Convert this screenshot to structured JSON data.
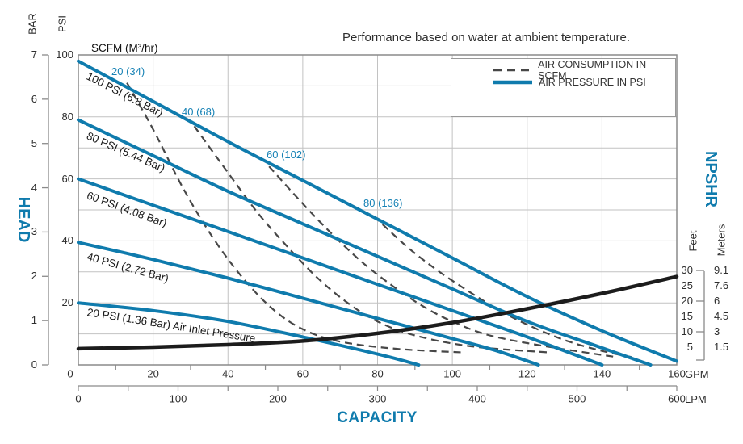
{
  "title": "Performance based on water at ambient temperature.",
  "scfm_header": "SCFM (M³/hr)",
  "legend": {
    "air_consumption": "AIR CONSUMPTION IN SCFM",
    "air_pressure": "AIR PRESSURE IN PSI"
  },
  "axis_labels": {
    "head": "HEAD",
    "capacity": "CAPACITY",
    "npshr": "NPSHR",
    "bar": "BAR",
    "psi": "PSI",
    "feet": "Feet",
    "meters": "Meters",
    "gpm_unit": "GPM",
    "lpm_unit": "LPM"
  },
  "ticks": {
    "bar": [
      7,
      6,
      5,
      4,
      3,
      2,
      1,
      0
    ],
    "psi": [
      100,
      80,
      60,
      40,
      20
    ],
    "gpm": [
      0,
      20,
      40,
      60,
      80,
      100,
      120,
      140,
      160
    ],
    "lpm": [
      0,
      100,
      200,
      300,
      400,
      500,
      600
    ],
    "feet": [
      30,
      25,
      20,
      15,
      10,
      5
    ],
    "meters": [
      "9.1",
      "7.6",
      "6",
      "4.5",
      "3",
      "1.5"
    ]
  },
  "colors": {
    "accent": "#0f7bad",
    "dash": "#474747",
    "black_curve": "#1c1c1c",
    "grid": "#c2c2c2",
    "frame": "#8a8a8a",
    "text": "#2e2e2e"
  },
  "chart_data": {
    "type": "line",
    "title": "Performance based on water at ambient temperature.",
    "x_axis": {
      "label": "CAPACITY",
      "units": [
        "GPM",
        "LPM"
      ],
      "gpm_range": [
        0,
        160
      ],
      "lpm_range": [
        0,
        600
      ]
    },
    "y_axis_left": {
      "label": "HEAD",
      "units": [
        "BAR",
        "PSI"
      ],
      "bar_range": [
        0,
        7
      ],
      "psi_range": [
        0,
        100
      ]
    },
    "y_axis_right": {
      "label": "NPSHR",
      "units": [
        "Feet",
        "Meters"
      ],
      "feet_ticks": [
        30,
        25,
        20,
        15,
        10,
        5
      ],
      "meters_ticks": [
        9.1,
        7.6,
        6,
        4.5,
        3,
        1.5
      ]
    },
    "grid": true,
    "legend_position": "top-right",
    "air_pressure_curves": [
      {
        "label": "100 PSI (6.8 Bar)",
        "points_gpm_psi": [
          [
            0,
            98
          ],
          [
            20,
            85
          ],
          [
            40,
            72
          ],
          [
            60,
            59.5
          ],
          [
            80,
            47
          ],
          [
            100,
            34.5
          ],
          [
            120,
            22
          ],
          [
            140,
            11
          ],
          [
            160,
            1.2
          ]
        ]
      },
      {
        "label": "80 PSI (5.44 Bar)",
        "points_gpm_psi": [
          [
            0,
            79
          ],
          [
            20,
            67.5
          ],
          [
            40,
            56
          ],
          [
            60,
            45.5
          ],
          [
            80,
            35
          ],
          [
            100,
            24.5
          ],
          [
            120,
            14
          ],
          [
            140,
            5.5
          ],
          [
            153,
            0
          ]
        ]
      },
      {
        "label": "60 PSI (4.08 Bar)",
        "points_gpm_psi": [
          [
            0,
            60
          ],
          [
            20,
            51.5
          ],
          [
            40,
            43
          ],
          [
            60,
            34.5
          ],
          [
            80,
            26
          ],
          [
            100,
            17.5
          ],
          [
            120,
            9
          ],
          [
            140,
            0
          ]
        ]
      },
      {
        "label": "40 PSI (2.72 Bar)",
        "points_gpm_psi": [
          [
            0,
            39.5
          ],
          [
            20,
            34
          ],
          [
            40,
            28
          ],
          [
            60,
            21.5
          ],
          [
            80,
            15
          ],
          [
            100,
            8.5
          ],
          [
            112,
            4.5
          ],
          [
            123,
            0
          ]
        ]
      },
      {
        "label": "20 PSI (1.36 Bar) Air Inlet Pressure",
        "points_gpm_psi": [
          [
            0,
            20
          ],
          [
            20,
            17.5
          ],
          [
            40,
            14
          ],
          [
            60,
            9
          ],
          [
            80,
            3.5
          ],
          [
            91,
            0
          ]
        ]
      }
    ],
    "air_consumption_curves": [
      {
        "label": "20 (34)",
        "points_gpm_psi": [
          [
            13,
            91
          ],
          [
            20,
            76
          ],
          [
            28,
            57
          ],
          [
            36,
            41
          ],
          [
            44,
            28
          ],
          [
            52,
            18
          ],
          [
            60,
            11.5
          ],
          [
            70,
            7.5
          ],
          [
            85,
            5.2
          ],
          [
            103,
            4
          ]
        ]
      },
      {
        "label": "40 (68)",
        "points_gpm_psi": [
          [
            31,
            77
          ],
          [
            40,
            62
          ],
          [
            48,
            49
          ],
          [
            56,
            38
          ],
          [
            64,
            28
          ],
          [
            72,
            20
          ],
          [
            80,
            14
          ],
          [
            90,
            9.5
          ],
          [
            105,
            6
          ],
          [
            126,
            4
          ]
        ]
      },
      {
        "label": "60 (102)",
        "points_gpm_psi": [
          [
            51,
            64
          ],
          [
            60,
            52
          ],
          [
            68,
            42
          ],
          [
            76,
            33
          ],
          [
            84,
            25.5
          ],
          [
            92,
            19
          ],
          [
            100,
            14
          ],
          [
            110,
            9.5
          ],
          [
            125,
            6
          ],
          [
            144,
            2.5
          ]
        ]
      },
      {
        "label": "80 (136)",
        "points_gpm_psi": [
          [
            79,
            48
          ],
          [
            88,
            38
          ],
          [
            96,
            30.5
          ],
          [
            104,
            24
          ],
          [
            112,
            18
          ],
          [
            120,
            13
          ],
          [
            130,
            8
          ],
          [
            140,
            4.5
          ],
          [
            148,
            2.5
          ]
        ]
      }
    ],
    "npshr_curve": {
      "label": "NPSHR",
      "points_gpm_feet": [
        [
          0,
          4.5
        ],
        [
          20,
          5
        ],
        [
          40,
          5.8
        ],
        [
          60,
          7
        ],
        [
          80,
          9.5
        ],
        [
          100,
          13
        ],
        [
          120,
          17.5
        ],
        [
          140,
          22.5
        ],
        [
          160,
          28
        ]
      ]
    }
  }
}
